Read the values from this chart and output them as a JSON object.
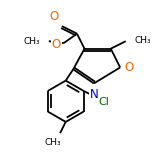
{
  "bg_color": "#ffffff",
  "line_color": "#000000",
  "O_color": "#ee6600",
  "N_color": "#0000cc",
  "Cl_color": "#006600",
  "lw": 1.3,
  "fs": 7.0
}
